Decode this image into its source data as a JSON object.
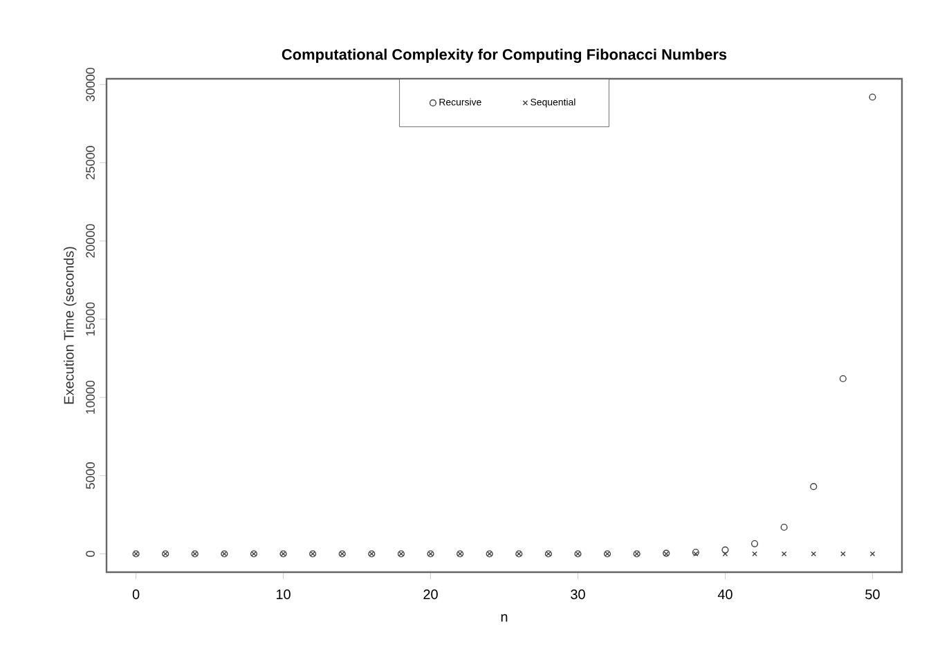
{
  "chart_data": {
    "type": "scatter",
    "title": "Computational Complexity for Computing Fibonacci Numbers",
    "xlabel": "n",
    "ylabel": "Execution Time (seconds)",
    "x": [
      0,
      2,
      4,
      6,
      8,
      10,
      12,
      14,
      16,
      18,
      20,
      22,
      24,
      26,
      28,
      30,
      32,
      34,
      36,
      38,
      40,
      42,
      44,
      46,
      48,
      50
    ],
    "series": [
      {
        "name": "Recursive",
        "color": "#404040",
        "marker": "circle",
        "values": [
          0,
          0,
          0,
          0,
          0,
          0,
          0,
          0,
          0,
          0,
          0,
          0,
          0,
          0,
          0,
          0,
          0,
          0,
          40,
          100,
          250,
          650,
          1700,
          4300,
          11200,
          29200
        ]
      },
      {
        "name": "Sequential",
        "color": "#404040",
        "marker": "cross",
        "values": [
          0,
          0,
          0,
          0,
          0,
          0,
          0,
          0,
          0,
          0,
          0,
          0,
          0,
          0,
          0,
          0,
          0,
          0,
          0,
          0,
          0,
          0,
          0,
          0,
          0,
          0
        ]
      }
    ],
    "xlim": [
      -2,
      52
    ],
    "ylim": [
      -1170,
      30370
    ],
    "xticks": [
      0,
      10,
      20,
      30,
      40,
      50
    ],
    "yticks": [
      0,
      5000,
      10000,
      15000,
      20000,
      25000,
      30000
    ],
    "legend": "top"
  }
}
